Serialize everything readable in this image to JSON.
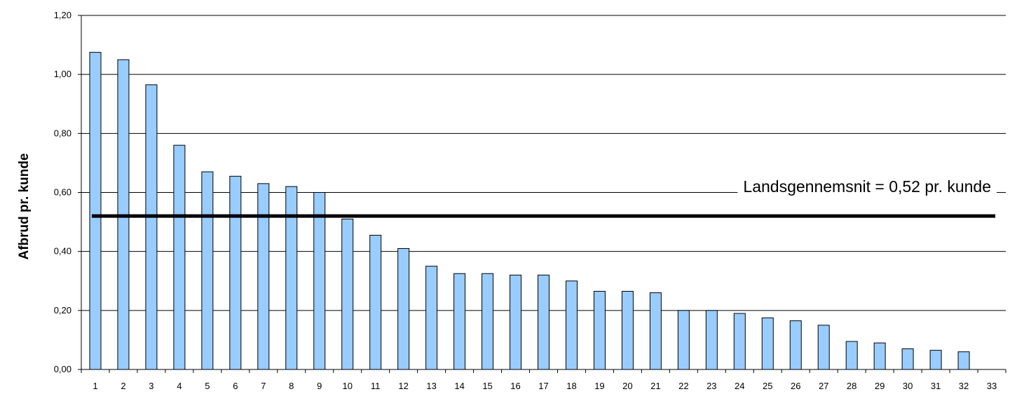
{
  "chart_data": {
    "type": "bar",
    "title": "",
    "xlabel": "",
    "ylabel": "Afbrud pr. kunde",
    "ylim": [
      0,
      1.2
    ],
    "yticks": [
      "0,00",
      "0,20",
      "0,40",
      "0,60",
      "0,80",
      "1,00",
      "1,20"
    ],
    "grid": true,
    "legend": "none",
    "categories": [
      "1",
      "2",
      "3",
      "4",
      "5",
      "6",
      "7",
      "8",
      "9",
      "10",
      "11",
      "12",
      "13",
      "14",
      "15",
      "16",
      "17",
      "18",
      "19",
      "20",
      "21",
      "22",
      "23",
      "24",
      "25",
      "26",
      "27",
      "28",
      "29",
      "30",
      "31",
      "32",
      "33"
    ],
    "values": [
      1.075,
      1.05,
      0.965,
      0.76,
      0.67,
      0.655,
      0.63,
      0.62,
      0.6,
      0.51,
      0.455,
      0.41,
      0.35,
      0.325,
      0.325,
      0.32,
      0.32,
      0.3,
      0.265,
      0.265,
      0.26,
      0.2,
      0.2,
      0.19,
      0.175,
      0.165,
      0.15,
      0.095,
      0.09,
      0.07,
      0.065,
      0.06,
      0
    ],
    "reference_line": {
      "value": 0.52,
      "label": "Landsgennemsnit = 0,52 pr. kunde"
    },
    "colors": {
      "bar_fill": "#99CCFF",
      "bar_stroke": "#000000",
      "grid": "#000000",
      "reference": "#000000"
    }
  }
}
